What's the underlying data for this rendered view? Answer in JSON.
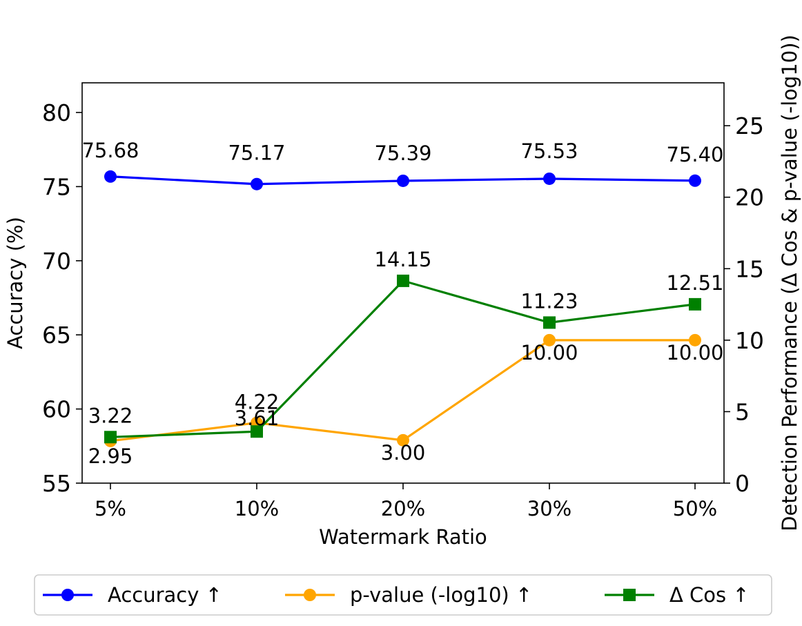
{
  "chart_data": {
    "type": "line",
    "categories": [
      "5%",
      "10%",
      "20%",
      "30%",
      "50%"
    ],
    "xlabel": "Watermark Ratio",
    "ylabel": "Accuracy (%)",
    "y2label": "Detection Performance (Δ Cos & p-value (-log10))",
    "ylim": [
      55,
      82
    ],
    "y2lim": [
      0,
      28
    ],
    "yticks": [
      55,
      60,
      65,
      70,
      75,
      80
    ],
    "y2ticks": [
      0,
      5,
      10,
      15,
      20,
      25
    ],
    "grid": false,
    "legend_position": "bottom",
    "series": [
      {
        "name": "Accuracy ↑",
        "axis": "left",
        "marker": "circle",
        "color": "#0000ff",
        "values": [
          75.68,
          75.17,
          75.39,
          75.53,
          75.4
        ],
        "labels": [
          "75.68",
          "75.17",
          "75.39",
          "75.53",
          "75.40"
        ]
      },
      {
        "name": "p-value (-log10) ↑",
        "axis": "right",
        "marker": "circle",
        "color": "#ffa500",
        "values": [
          2.95,
          4.22,
          3.0,
          10.0,
          10.0
        ],
        "labels": [
          "2.95",
          "4.22",
          "3.00",
          "10.00",
          "10.00"
        ]
      },
      {
        "name": "Δ Cos ↑",
        "axis": "right",
        "marker": "square",
        "color": "#008000",
        "values": [
          3.22,
          3.61,
          14.15,
          11.23,
          12.51
        ],
        "labels": [
          "3.22",
          "3.61",
          "14.15",
          "11.23",
          "12.51"
        ]
      }
    ]
  }
}
